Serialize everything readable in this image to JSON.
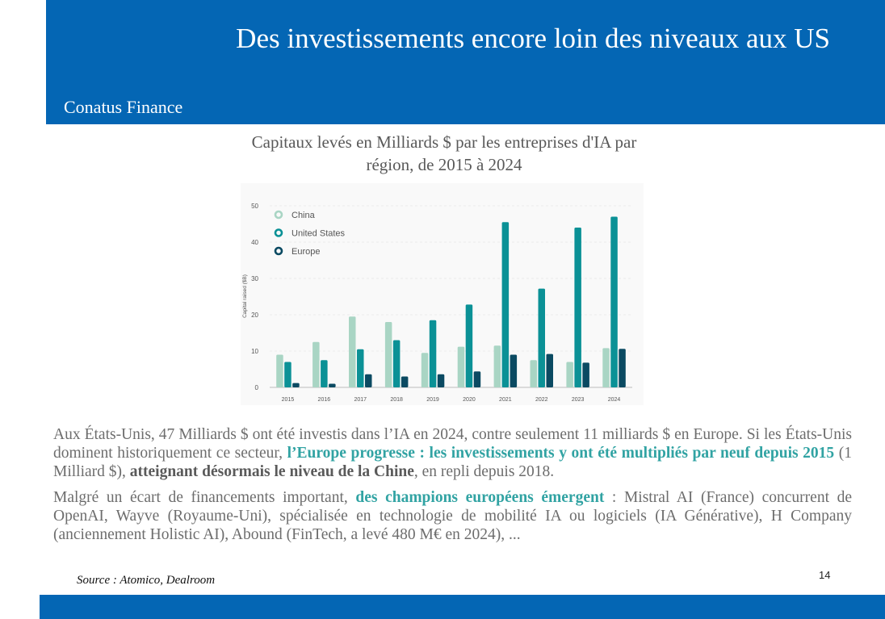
{
  "slide": {
    "title": "Des investissements encore loin des niveaux aux US",
    "brand": "Conatus Finance",
    "page_number": "14",
    "source": "Source : Atomico, Dealroom"
  },
  "chart_caption": {
    "line1": "Capitaux levés en Milliards $ par les entreprises d'IA par",
    "line2": "région, de 2015 à 2024"
  },
  "chart_data": {
    "type": "bar",
    "categories": [
      "2015",
      "2016",
      "2017",
      "2018",
      "2019",
      "2020",
      "2021",
      "2022",
      "2023",
      "2024"
    ],
    "series": [
      {
        "name": "China",
        "color": "#a9d5c4",
        "values": [
          9,
          12.5,
          19.5,
          18,
          9.5,
          11.2,
          11.5,
          7.5,
          7,
          10.8
        ]
      },
      {
        "name": "United States",
        "color": "#0b9196",
        "values": [
          7,
          7.5,
          10.5,
          13,
          18.5,
          22.8,
          45.5,
          27.2,
          44,
          47
        ]
      },
      {
        "name": "Europe",
        "color": "#0b4a62",
        "values": [
          1.2,
          1,
          3.6,
          3,
          3.6,
          4.4,
          9,
          9.2,
          6.8,
          10.6
        ]
      }
    ],
    "ylabel": "Capital raised ($B)",
    "yticks": [
      0,
      10,
      20,
      30,
      40,
      50
    ],
    "ylim": [
      0,
      50
    ],
    "legend": "top-left",
    "grid": true
  },
  "paragraphs": {
    "p1": [
      {
        "text": "Aux États-Unis, 47 Milliards $ ont été investis dans l’IA en 2024, contre seulement 11 milliards $ en Europe. Si les États-Unis dominent historiquement ce secteur, ",
        "style": "normal"
      },
      {
        "text": "l’Europe progresse : les investissements y ont été multipliés par neuf  depuis 2015",
        "style": "highlight"
      },
      {
        "text": " (1 Milliard $), ",
        "style": "normal"
      },
      {
        "text": "atteignant désormais le niveau de la Chine",
        "style": "dark"
      },
      {
        "text": ", en repli depuis 2018.",
        "style": "normal"
      }
    ],
    "p2": [
      {
        "text": "Malgré un écart de financements important, ",
        "style": "normal"
      },
      {
        "text": "des champions européens émergent ",
        "style": "highlight"
      },
      {
        "text": ": Mistral AI (France) concurrent de OpenAI, Wayve (Royaume-Uni), spécialisée en technologie de mobilité IA ou logiciels (IA Générative), H Company (anciennement Holistic AI), Abound (FinTech, a levé 480 M€ en 2024), ...",
        "style": "normal"
      }
    ]
  }
}
